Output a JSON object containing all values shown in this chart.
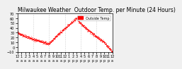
{
  "title": "Milwaukee Weather  Outdoor Temp. per Minute (24 Hours)",
  "background_color": "#f0f0f0",
  "plot_bg_color": "#ffffff",
  "line_color": "#ff0000",
  "grid_color": "#aaaaaa",
  "ylim": [
    -10,
    70
  ],
  "yticks": [
    -10,
    0,
    10,
    20,
    30,
    40,
    50,
    60,
    70
  ],
  "legend_label": "Outside Temp",
  "legend_color": "#ff0000",
  "vline_positions": [
    240,
    480,
    720,
    960,
    1200
  ],
  "title_fontsize": 5.5,
  "tick_fontsize": 3.5,
  "marker_size": 0.8
}
